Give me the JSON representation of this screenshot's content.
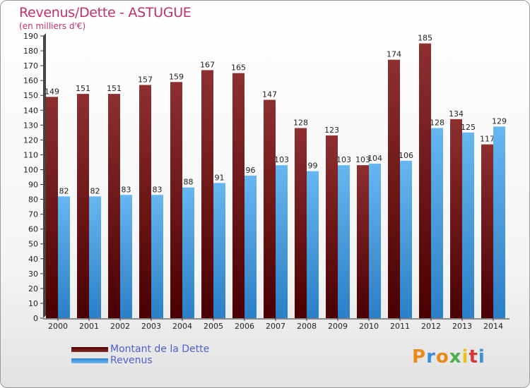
{
  "chart_data": {
    "type": "bar",
    "title": "Revenus/Dette - ASTUGUE",
    "subtitle": "(en milliers d'€)",
    "categories": [
      "2000",
      "2001",
      "2002",
      "2003",
      "2004",
      "2005",
      "2006",
      "2007",
      "2008",
      "2009",
      "2010",
      "2011",
      "2012",
      "2013",
      "2014"
    ],
    "series": [
      {
        "name": "Montant de la Dette",
        "color": "#7a1f1f",
        "values": [
          149,
          151,
          151,
          157,
          159,
          167,
          165,
          147,
          128,
          123,
          103,
          174,
          185,
          134,
          117
        ]
      },
      {
        "name": "Revenus",
        "color": "#4fa6e6",
        "values": [
          82,
          82,
          83,
          83,
          88,
          91,
          96,
          103,
          99,
          103,
          104,
          106,
          128,
          125,
          129
        ]
      }
    ],
    "ylim": [
      0,
      190
    ],
    "yticks": [
      0,
      10,
      20,
      30,
      40,
      50,
      60,
      70,
      80,
      90,
      100,
      110,
      120,
      130,
      140,
      150,
      160,
      170,
      180,
      190
    ],
    "grid": false,
    "legend": "bottom-left"
  },
  "logo": {
    "letters": [
      "P",
      "r",
      "o",
      "x",
      "i",
      "t",
      "i"
    ],
    "colors": [
      "#e88a1a",
      "#3a8fd8",
      "#e88a1a",
      "#4caf50",
      "#e8c21a",
      "#d23a3a",
      "#3a8fd8"
    ]
  }
}
